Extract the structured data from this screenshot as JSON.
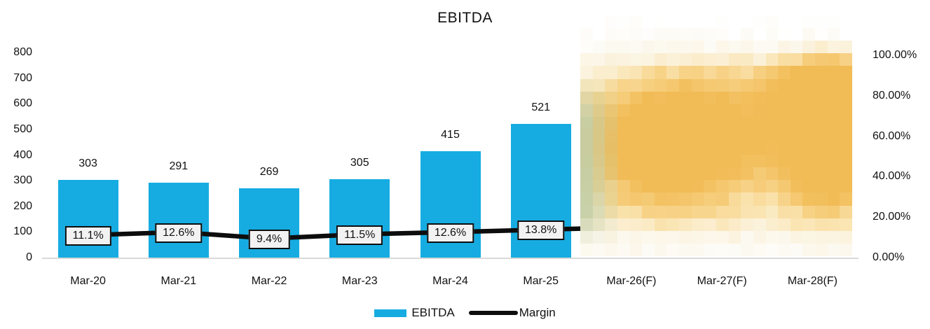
{
  "title": "EBITDA",
  "legend": {
    "ebitda_label": "EBITDA",
    "margin_label": "Margin"
  },
  "chart_data": {
    "type": "bar",
    "combo": "bar-with-line-overlay",
    "title": "EBITDA",
    "categories": [
      "Mar-20",
      "Mar-21",
      "Mar-22",
      "Mar-23",
      "Mar-24",
      "Mar-25",
      "Mar-26(F)",
      "Mar-27(F)",
      "Mar-28(F)"
    ],
    "series": [
      {
        "name": "EBITDA",
        "type": "bar",
        "color": "#16ACE2",
        "axis": "left",
        "values": [
          303,
          291,
          269,
          305,
          415,
          521,
          null,
          null,
          null
        ],
        "data_labels": [
          "303",
          "291",
          "269",
          "305",
          "415",
          "521"
        ]
      },
      {
        "name": "Margin",
        "type": "line",
        "color": "#0d0d0d",
        "axis": "right",
        "values_pct": [
          11.1,
          12.6,
          9.4,
          11.5,
          12.6,
          13.8,
          null,
          null,
          null
        ],
        "data_labels": [
          "11.1%",
          "12.6%",
          "9.4%",
          "11.5%",
          "12.6%",
          "13.8%"
        ]
      }
    ],
    "left_axis": {
      "ticks": [
        "800",
        "700",
        "600",
        "500",
        "400",
        "300",
        "200",
        "100",
        "0"
      ],
      "range": [
        0,
        800
      ]
    },
    "right_axis": {
      "ticks": [
        "100.00%",
        "80.00%",
        "60.00%",
        "40.00%",
        "20.00%",
        "0.00%"
      ],
      "range_pct": [
        0,
        100
      ]
    },
    "legend_position": "bottom",
    "grid": false,
    "forecast_redaction": {
      "covers_categories": [
        "Mar-26(F)",
        "Mar-27(F)",
        "Mar-28(F)"
      ],
      "style": "pixelated-mosaic",
      "palette": [
        "#ffffff",
        "#fcf9f0",
        "#fbf1d9",
        "#fae5b4",
        "#f7d286",
        "#f4c467",
        "#f1bb55"
      ],
      "tint_green": "#bccaa4"
    }
  }
}
